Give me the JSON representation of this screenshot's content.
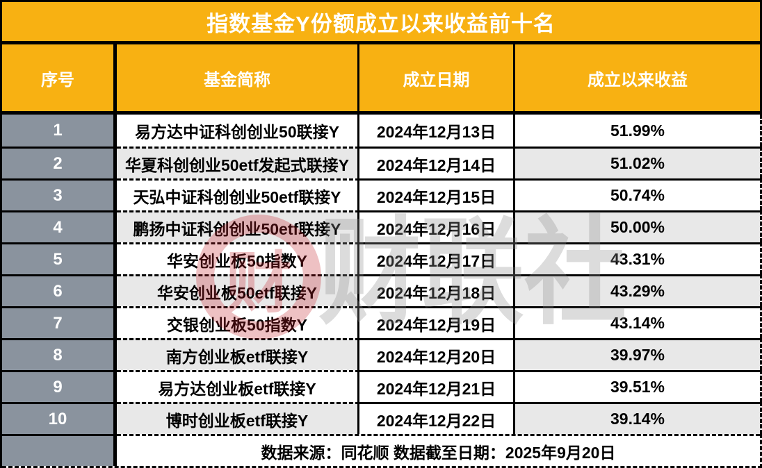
{
  "title": "指数基金Y份额成立以来收益前十名",
  "columns": [
    "序号",
    "基金简称",
    "成立日期",
    "成立以来收益"
  ],
  "rows": [
    {
      "rank": "1",
      "name": "易方达中证科创创业50联接Y",
      "date": "2024年12月13日",
      "return": "51.99%"
    },
    {
      "rank": "2",
      "name": "华夏科创创业50etf发起式联接Y",
      "date": "2024年12月14日",
      "return": "51.02%"
    },
    {
      "rank": "3",
      "name": "天弘中证科创创业50etf联接Y",
      "date": "2024年12月15日",
      "return": "50.74%"
    },
    {
      "rank": "4",
      "name": "鹏扬中证科创创业50etf联接Y",
      "date": "2024年12月16日",
      "return": "50.00%"
    },
    {
      "rank": "5",
      "name": "华安创业板50指数Y",
      "date": "2024年12月17日",
      "return": "43.31%"
    },
    {
      "rank": "6",
      "name": "华安创业板50etf联接Y",
      "date": "2024年12月18日",
      "return": "43.29%"
    },
    {
      "rank": "7",
      "name": "交银创业板50指数Y",
      "date": "2024年12月19日",
      "return": "43.14%"
    },
    {
      "rank": "8",
      "name": "南方创业板etf联接Y",
      "date": "2024年12月20日",
      "return": "39.97%"
    },
    {
      "rank": "9",
      "name": "易方达创业板etf联接Y",
      "date": "2024年12月21日",
      "return": "39.51%"
    },
    {
      "rank": "10",
      "name": "博时创业板etf联接Y",
      "date": "2024年12月22日",
      "return": "39.14%"
    }
  ],
  "footer": {
    "text": "数据来源：同花顺  数据截至日期：2025年9月20日"
  },
  "watermark": {
    "logo_char": "财",
    "text": "财联社"
  },
  "colors": {
    "header_bg": "#F8B112",
    "header_text": "#FFFFFF",
    "rank_col_bg": "#8A939E",
    "rank_text": "#FFFFFF",
    "stripe_bg": "#E8E8E8",
    "body_bg": "#FFFFFF",
    "border": "#000000",
    "text": "#000000",
    "logo_red": "#C5232D",
    "watermark_gray": "#8F8F8F"
  },
  "chart_data": {
    "type": "table",
    "title": "指数基金Y份额成立以来收益前十名",
    "columns": [
      "序号",
      "基金简称",
      "成立日期",
      "成立以来收益"
    ],
    "rows": [
      [
        "1",
        "易方达中证科创创业50联接Y",
        "2024年12月13日",
        "51.99%"
      ],
      [
        "2",
        "华夏科创创业50etf发起式联接Y",
        "2024年12月14日",
        "51.02%"
      ],
      [
        "3",
        "天弘中证科创创业50etf联接Y",
        "2024年12月15日",
        "50.74%"
      ],
      [
        "4",
        "鹏扬中证科创创业50etf联接Y",
        "2024年12月16日",
        "50.00%"
      ],
      [
        "5",
        "华安创业板50指数Y",
        "2024年12月17日",
        "43.31%"
      ],
      [
        "6",
        "华安创业板50etf联接Y",
        "2024年12月18日",
        "43.29%"
      ],
      [
        "7",
        "交银创业板50指数Y",
        "2024年12月19日",
        "43.14%"
      ],
      [
        "8",
        "南方创业板etf联接Y",
        "2024年12月20日",
        "39.97%"
      ],
      [
        "9",
        "易方达创业板etf联接Y",
        "2024年12月21日",
        "39.51%"
      ],
      [
        "10",
        "博时创业板etf联接Y",
        "2024年12月22日",
        "39.14%"
      ]
    ],
    "returns_pct": [
      51.99,
      51.02,
      50.74,
      50.0,
      43.31,
      43.29,
      43.14,
      39.97,
      39.51,
      39.14
    ],
    "source_note": "数据来源：同花顺  数据截至日期：2025年9月20日"
  }
}
